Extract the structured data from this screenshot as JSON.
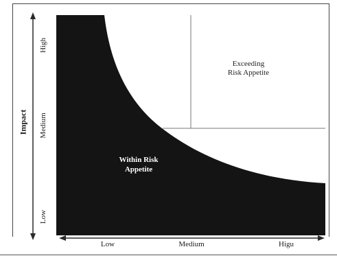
{
  "diagram": {
    "y_axis_title": "Impact",
    "y_ticks": [
      "High",
      "Medium",
      "Low"
    ],
    "x_ticks": [
      "Low",
      "Medium",
      "Higu"
    ],
    "regions": {
      "outside": [
        "Exceeding",
        "Risk Appetite"
      ],
      "inside": [
        "Within Risk",
        "Appetite"
      ]
    },
    "colors": {
      "region_fill": "#141414",
      "divider": "#777777",
      "background": "#ffffff"
    }
  }
}
